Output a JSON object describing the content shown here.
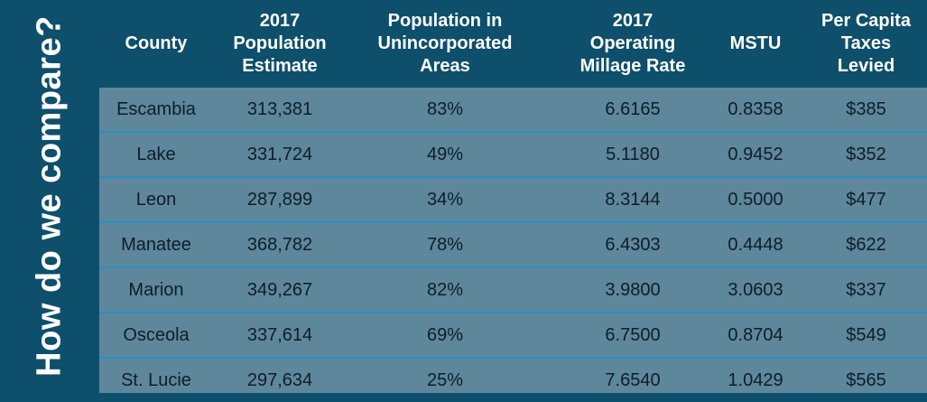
{
  "side_title": "How do we compare?",
  "table": {
    "headers": [
      "County",
      "2017\nPopulation\nEstimate",
      "Population in\nUnincorporated\nAreas",
      "2017\nOperating\nMillage Rate",
      "MSTU",
      "Per Capita\nTaxes\nLevied"
    ],
    "rows": [
      [
        "Escambia",
        "313,381",
        "83%",
        "6.6165",
        "0.8358",
        "$385"
      ],
      [
        "Lake",
        "331,724",
        "49%",
        "5.1180",
        "0.9452",
        "$352"
      ],
      [
        "Leon",
        "287,899",
        "34%",
        "8.3144",
        "0.5000",
        "$477"
      ],
      [
        "Manatee",
        "368,782",
        "78%",
        "6.4303",
        "0.4448",
        "$622"
      ],
      [
        "Marion",
        "349,267",
        "82%",
        "3.9800",
        "3.0603",
        "$337"
      ],
      [
        "Osceola",
        "337,614",
        "69%",
        "6.7500",
        "0.8704",
        "$549"
      ],
      [
        "St. Lucie",
        "297,634",
        "25%",
        "7.6540",
        "1.0429",
        "$565"
      ]
    ]
  }
}
